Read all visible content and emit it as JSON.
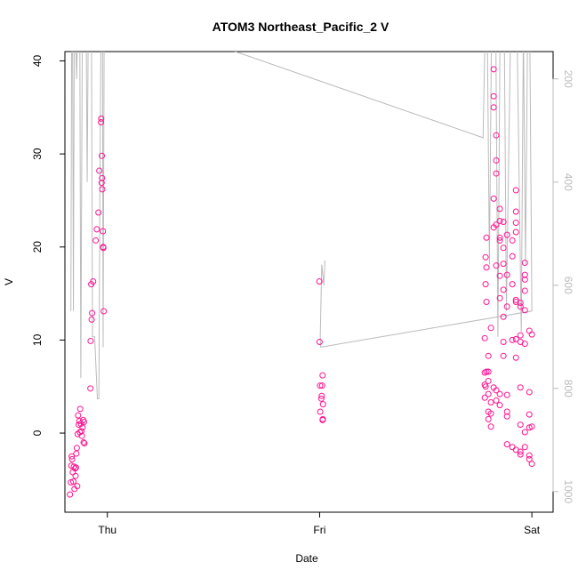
{
  "chart_data": {
    "type": "scatter",
    "title": "ATOM3 Northeast_Pacific_2 V",
    "xlabel": "Date",
    "ylabel": "V",
    "xlim": [
      -0.2,
      2.1
    ],
    "xticks": [
      {
        "value": 0,
        "label": "Thu"
      },
      {
        "value": 1,
        "label": "Fri"
      },
      {
        "value": 2,
        "label": "Sat"
      }
    ],
    "ylim": [
      -8.5,
      41
    ],
    "yticks": [
      0,
      10,
      20,
      30,
      40
    ],
    "y2lim": [
      1040,
      147
    ],
    "y2ticks": [
      200,
      400,
      600,
      800,
      1000
    ],
    "series": [
      {
        "type": "scatter",
        "color": "#ff1493",
        "x": [
          -0.176,
          -0.172,
          -0.17,
          -0.168,
          -0.166,
          -0.163,
          -0.16,
          -0.158,
          -0.155,
          -0.152,
          -0.15,
          -0.148,
          -0.146,
          -0.144,
          -0.142,
          -0.14,
          -0.138,
          -0.135,
          -0.132,
          -0.13,
          -0.128,
          -0.125,
          -0.122,
          -0.12,
          -0.117,
          -0.114,
          -0.112,
          -0.11,
          -0.108,
          -0.08,
          -0.079,
          -0.076,
          -0.072,
          -0.074,
          -0.067,
          -0.055,
          -0.05,
          -0.042,
          -0.038,
          -0.03,
          -0.029,
          -0.025,
          -0.027,
          -0.026,
          -0.024,
          -0.021,
          -0.02,
          -0.019,
          -0.017,
          0.999,
          1.0,
          1.002,
          1.003,
          1.01,
          1.012,
          1.014,
          1.016,
          1.015,
          1.014,
          1.008,
          1.778,
          1.778,
          1.778,
          1.778,
          1.782,
          1.782,
          1.782,
          1.786,
          1.786,
          1.786,
          1.786,
          1.795,
          1.795,
          1.795,
          1.795,
          1.795,
          1.795,
          1.807,
          1.807,
          1.807,
          1.807,
          1.82,
          1.82,
          1.82,
          1.82,
          1.82,
          1.82,
          1.832,
          1.832,
          1.832,
          1.832,
          1.832,
          1.832,
          1.832,
          1.849,
          1.849,
          1.849,
          1.849,
          1.849,
          1.849,
          1.849,
          1.849,
          1.866,
          1.866,
          1.866,
          1.866,
          1.866,
          1.866,
          1.866,
          1.883,
          1.883,
          1.883,
          1.883,
          1.883,
          1.883,
          1.883,
          1.908,
          1.908,
          1.908,
          1.908,
          1.908,
          1.925,
          1.925,
          1.925,
          1.925,
          1.925,
          1.925,
          1.925,
          1.925,
          1.925,
          1.946,
          1.946,
          1.946,
          1.946,
          1.946,
          1.946,
          1.946,
          1.946,
          1.967,
          1.967,
          1.967,
          1.967,
          1.967,
          1.967,
          1.967,
          1.967,
          1.988,
          1.988,
          1.988,
          1.988,
          1.988,
          1.988,
          2.0,
          2.0,
          2.0
        ],
        "values": [
          -6.6,
          -5.3,
          -3.5,
          -2.5,
          -2.8,
          -4.2,
          -5.2,
          -3.6,
          -6.0,
          -3.8,
          -4.6,
          -3.7,
          -2.2,
          -1.6,
          -5.7,
          -0.1,
          1.9,
          0.9,
          1.3,
          0.1,
          2.6,
          1.0,
          0.2,
          -0.3,
          0.6,
          1.4,
          -1.0,
          1.2,
          -1.1,
          4.8,
          9.9,
          16.0,
          12.9,
          12.2,
          16.3,
          20.7,
          21.9,
          23.7,
          28.2,
          33.4,
          33.8,
          27.4,
          26.9,
          29.8,
          26.2,
          21.7,
          20.0,
          19.9,
          13.1,
          16.3,
          9.8,
          5.1,
          2.3,
          4.0,
          5.1,
          6.2,
          3.1,
          1.5,
          1.4,
          3.7,
          10.2,
          5.2,
          3.8,
          6.5,
          16.0,
          18.9,
          5.0,
          21.0,
          17.8,
          14.1,
          6.6,
          8.3,
          5.6,
          4.2,
          2.3,
          1.5,
          6.6,
          3.3,
          2.1,
          0.7,
          11.3,
          25.2,
          35.0,
          36.2,
          39.1,
          22.1,
          4.9,
          32.0,
          29.3,
          27.9,
          22.4,
          18.0,
          4.6,
          3.5,
          24.1,
          22.8,
          21.0,
          20.7,
          16.9,
          14.5,
          4.2,
          3.0,
          22.7,
          19.9,
          18.2,
          15.4,
          12.5,
          9.8,
          8.3,
          21.3,
          17.0,
          13.6,
          4.1,
          2.3,
          1.8,
          -1.2,
          20.7,
          19.0,
          16.0,
          10.0,
          -1.5,
          26.1,
          23.8,
          22.6,
          21.6,
          14.3,
          14.1,
          10.1,
          8.1,
          -1.8,
          14.0,
          13.6,
          10.5,
          9.8,
          4.9,
          0.9,
          -2.0,
          -2.3,
          18.3,
          17.0,
          16.5,
          15.3,
          13.2,
          9.6,
          0.1,
          -1.5,
          11.0,
          4.4,
          2.0,
          0.6,
          -2.8,
          -2.4,
          10.6,
          -3.3,
          0.7
        ]
      },
      {
        "type": "line",
        "axis": "y2",
        "color": "#bbbbbb",
        "x": [
          -0.172,
          -0.168,
          -0.164,
          -0.16,
          -0.156,
          -0.15,
          -0.145,
          -0.14,
          -0.13,
          -0.125,
          -0.118,
          -0.1,
          -0.095,
          -0.09,
          -0.075,
          -0.07,
          -0.06,
          -0.047,
          -0.04,
          -0.035,
          -0.03,
          -0.023,
          -0.02,
          -0.015,
          -0.005,
          1.77,
          1.78,
          1.79,
          1.8,
          1.81,
          1.83,
          1.84,
          1.85,
          1.87,
          1.88,
          1.9,
          1.93,
          1.95,
          1.96,
          1.97,
          1.98,
          1.99,
          2.0,
          1.005,
          1.003,
          1.01,
          1.02,
          1.025
        ],
        "values": [
          650,
          100,
          100,
          650,
          100,
          100,
          200,
          100,
          100,
          780,
          100,
          100,
          400,
          100,
          100,
          700,
          700,
          820,
          820,
          400,
          100,
          100,
          720,
          100,
          60,
          314,
          100,
          100,
          560,
          100,
          100,
          700,
          100,
          100,
          650,
          100,
          100,
          690,
          100,
          560,
          100,
          100,
          650,
          720,
          700,
          560,
          600,
          552
        ]
      }
    ]
  }
}
